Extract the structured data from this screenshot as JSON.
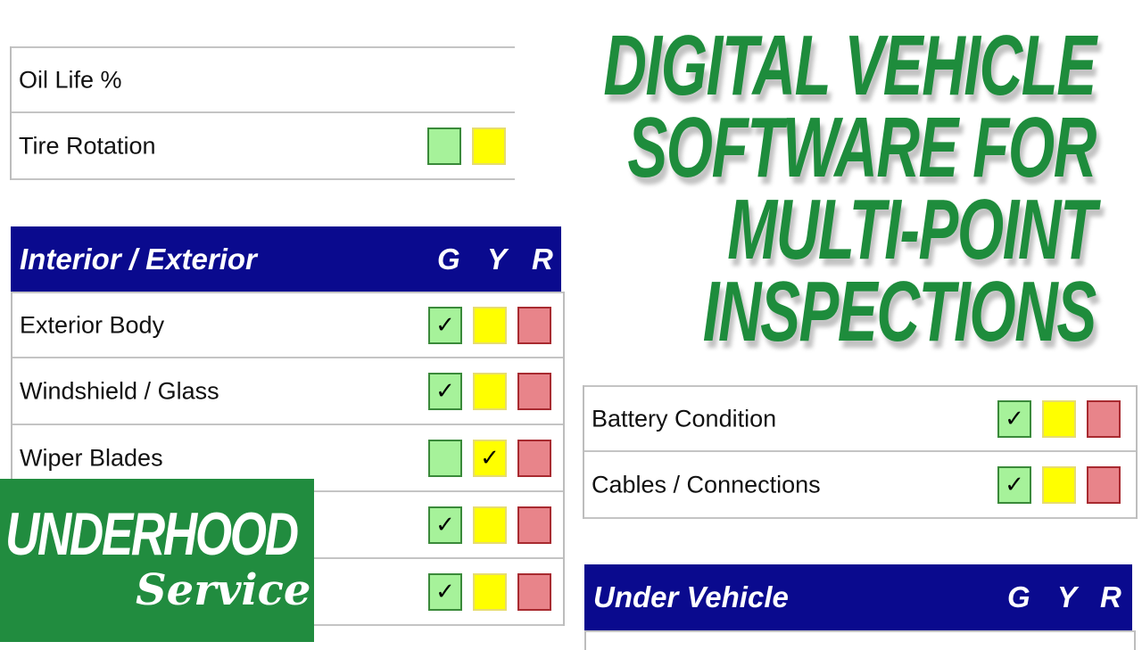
{
  "headline": [
    "DIGITAL VEHICLE",
    "SOFTWARE FOR",
    "MULTI-POINT",
    "INSPECTIONS"
  ],
  "logo": {
    "line1": "UNDERHOOD",
    "line2": "Service"
  },
  "colors": {
    "headline": "#1e8c3c",
    "section_header": "#0a0a8e",
    "good": "#a6f29a",
    "caution": "#ffff00",
    "urgent": "#e8848a",
    "logo_bg": "#218c3f"
  },
  "maintenance": {
    "rows": [
      {
        "label": "Oil Life %",
        "checked": null,
        "show_boxes": false
      },
      {
        "label": "Tire Rotation",
        "checked": null,
        "show_boxes": true
      }
    ]
  },
  "interior_exterior": {
    "title": "Interior / Exterior",
    "columns": [
      "G",
      "Y",
      "R"
    ],
    "rows": [
      {
        "label": "Exterior Body",
        "checked": "G"
      },
      {
        "label": "Windshield / Glass",
        "checked": "G"
      },
      {
        "label": "Wiper Blades",
        "checked": "Y"
      },
      {
        "label": "",
        "checked": "G"
      },
      {
        "label": "",
        "checked": "G"
      }
    ]
  },
  "battery": {
    "rows": [
      {
        "label": "Battery Condition",
        "checked": "G"
      },
      {
        "label": "Cables / Connections",
        "checked": "G"
      }
    ]
  },
  "under_vehicle": {
    "title": "Under Vehicle",
    "columns": [
      "G",
      "Y",
      "R"
    ]
  }
}
